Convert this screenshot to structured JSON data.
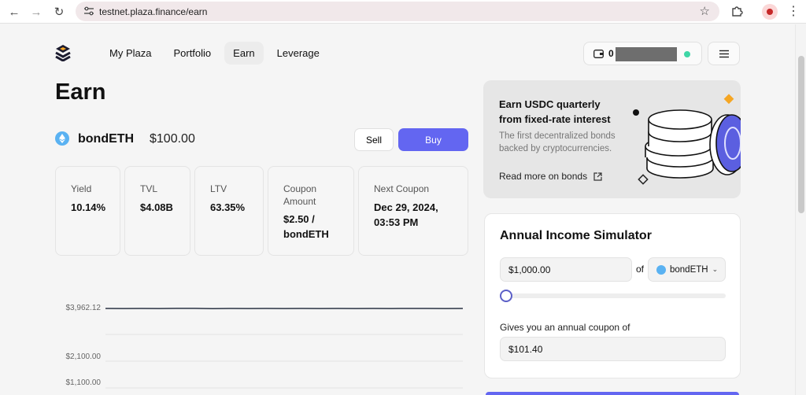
{
  "browser": {
    "url": "testnet.plaza.finance/earn"
  },
  "nav": {
    "tabs": [
      {
        "label": "My Plaza"
      },
      {
        "label": "Portfolio"
      },
      {
        "label": "Earn"
      },
      {
        "label": "Leverage"
      }
    ],
    "wallet_balance": "0"
  },
  "page": {
    "title": "Earn",
    "token_name": "bondETH",
    "token_price": "$100.00",
    "sell_label": "Sell",
    "buy_label": "Buy"
  },
  "stats": [
    {
      "label": "Yield",
      "value": "10.14%"
    },
    {
      "label": "TVL",
      "value": "$4.08B"
    },
    {
      "label": "LTV",
      "value": "63.35%"
    },
    {
      "label": "Coupon Amount",
      "value": "$2.50 / bondETH"
    },
    {
      "label": "Next Coupon",
      "value": "Dec 29, 2024, 03:53 PM"
    }
  ],
  "chart_data": {
    "type": "line",
    "y_ticks": [
      "$3,962.12",
      "$2,100.00",
      "$1,100.00"
    ],
    "series": [
      {
        "values": [
          3962,
          3958,
          3963,
          3960,
          3964,
          3966,
          3955,
          3962,
          3959,
          3961,
          3960,
          3963,
          3958,
          3962,
          3960,
          3961,
          3959,
          3962,
          3961,
          3960,
          3962
        ]
      }
    ],
    "ylim": [
      1100,
      3962.12
    ],
    "grid": true,
    "line_color": "#2b3344"
  },
  "promo": {
    "title": "Earn USDC quarterly from fixed-rate interest",
    "description": "The first decentralized bonds backed by cryptocurrencies.",
    "link_label": "Read more on bonds"
  },
  "simulator": {
    "title": "Annual Income Simulator",
    "amount": "$1,000.00",
    "of_label": "of",
    "token": "bondETH",
    "slider_fraction": 0,
    "result_label": "Gives you an annual coupon of",
    "result_value": "$101.40"
  },
  "colors": {
    "accent": "#6366f1",
    "token": "#5ab2f2",
    "status_dot": "#3fd6a6"
  }
}
